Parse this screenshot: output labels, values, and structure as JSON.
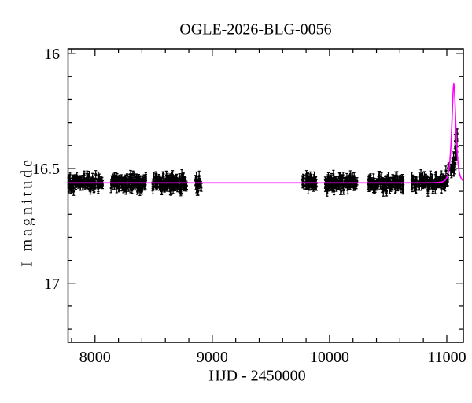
{
  "chart_data": {
    "type": "scatter",
    "title": "OGLE-2026-BLG-0056",
    "xlabel": "HJD - 2450000",
    "ylabel": "I magnitude",
    "x_domain": [
      7770,
      11141
    ],
    "y_domain_mag": [
      15.979,
      17.258
    ],
    "y_axis_inverted": true,
    "x_major_ticks": [
      {
        "v": 8000,
        "label": "8000"
      },
      {
        "v": 9000,
        "label": "9000"
      },
      {
        "v": 10000,
        "label": "10000"
      },
      {
        "v": 11000,
        "label": "11000"
      }
    ],
    "x_minor_step": 200,
    "y_major_ticks": [
      {
        "v": 16,
        "label": "16"
      },
      {
        "v": 16.5,
        "label": "16.5"
      },
      {
        "v": 17,
        "label": "17"
      }
    ],
    "y_minor_step": 0.1,
    "grid": false,
    "legend": "none",
    "colors": {
      "model_curve": "#ff00ff",
      "data_points": "#000000",
      "frame": "#000000",
      "background": "#ffffff"
    },
    "baseline_mag": 16.563,
    "peak_mag": 16.13,
    "peak_time": 11060,
    "model": {
      "type": "paczynski",
      "t0": 11060,
      "tE": 22.5,
      "u0": 0.84,
      "baseline_mag": 16.563
    },
    "season_clusters": [
      {
        "name": "season-1",
        "t_start": 7772,
        "t_end": 8065,
        "n": 130,
        "sigma": 0.016,
        "err": [
          0.012,
          0.022
        ],
        "seed": 1007
      },
      {
        "name": "season-2",
        "t_start": 8134,
        "t_end": 8436,
        "n": 140,
        "sigma": 0.016,
        "err": [
          0.012,
          0.022
        ],
        "seed": 2007
      },
      {
        "name": "season-3",
        "t_start": 8490,
        "t_end": 8785,
        "n": 140,
        "sigma": 0.016,
        "err": [
          0.012,
          0.022
        ],
        "seed": 3007
      },
      {
        "name": "season-4",
        "t_start": 8852,
        "t_end": 8907,
        "n": 26,
        "sigma": 0.017,
        "err": [
          0.012,
          0.022
        ],
        "seed": 4007
      },
      {
        "name": "season-5",
        "t_start": 9765,
        "t_end": 9895,
        "n": 62,
        "sigma": 0.016,
        "err": [
          0.012,
          0.022
        ],
        "seed": 5007
      },
      {
        "name": "season-6",
        "t_start": 9960,
        "t_end": 10235,
        "n": 125,
        "sigma": 0.016,
        "err": [
          0.012,
          0.022
        ],
        "seed": 6007
      },
      {
        "name": "season-7",
        "t_start": 10325,
        "t_end": 10630,
        "n": 135,
        "sigma": 0.016,
        "err": [
          0.012,
          0.022
        ],
        "seed": 7007
      },
      {
        "name": "season-8",
        "t_start": 10700,
        "t_end": 11020,
        "n": 135,
        "sigma": 0.016,
        "err": [
          0.012,
          0.022
        ],
        "seed": 8007
      }
    ],
    "peak_clumps": [
      {
        "name": "rising-side-points",
        "t_start": 11032,
        "t_end": 11062,
        "mag_min": 16.42,
        "mag_max": 16.52,
        "n": 12,
        "err": [
          0.02,
          0.032
        ],
        "seed": 9107
      },
      {
        "name": "falling-side-points",
        "t_start": 11068,
        "t_end": 11094,
        "mag_min": 16.34,
        "mag_max": 16.5,
        "n": 14,
        "err": [
          0.02,
          0.032
        ],
        "seed": 9207
      }
    ]
  }
}
